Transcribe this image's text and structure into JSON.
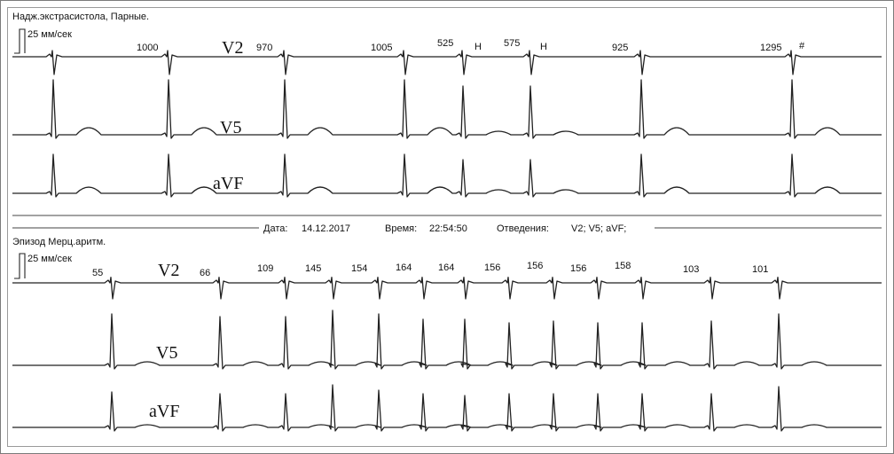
{
  "top_panel": {
    "title": "Надж.экстрасистола, Парные.",
    "speed": "25 мм/сек",
    "leads": [
      "V2",
      "V5",
      "aVF"
    ],
    "intervals": [
      {
        "label": "1000"
      },
      {
        "label": "970"
      },
      {
        "label": "1005"
      },
      {
        "label": "525"
      },
      {
        "label": "Н"
      },
      {
        "label": "575"
      },
      {
        "label": "Н"
      },
      {
        "label": "925"
      },
      {
        "label": "1295"
      },
      {
        "label": "#"
      }
    ]
  },
  "separator": {
    "date_label": "Дата:",
    "date": "14.12.2017",
    "time_label": "Время:",
    "time": "22:54:50",
    "leads_label": "Отведения:",
    "leads": "V2; V5; aVF;"
  },
  "bottom_panel": {
    "title": "Эпизод Мерц.аритм.",
    "speed": "25 мм/сек",
    "leads": [
      "V2",
      "V5",
      "aVF"
    ],
    "intervals": [
      {
        "label": "55"
      },
      {
        "label": "66"
      },
      {
        "label": "109"
      },
      {
        "label": "145"
      },
      {
        "label": "154"
      },
      {
        "label": "164"
      },
      {
        "label": "164"
      },
      {
        "label": "156"
      },
      {
        "label": "156"
      },
      {
        "label": "156"
      },
      {
        "label": "158"
      },
      {
        "label": "103"
      },
      {
        "label": "101"
      }
    ]
  },
  "colors": {
    "trace": "#222222",
    "frame": "#7a7a7a",
    "text": "#111111"
  }
}
